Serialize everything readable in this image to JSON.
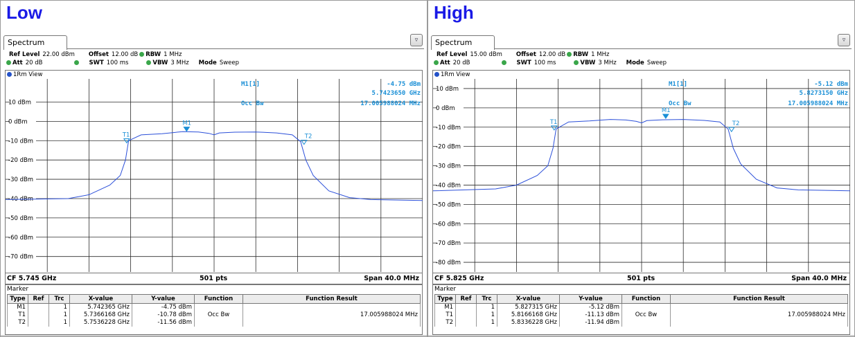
{
  "panels": [
    {
      "label": "Low",
      "tab": "Spectrum",
      "settings": {
        "ref_level_label": "Ref Level",
        "ref_level": "22.00 dBm",
        "offset_label": "Offset",
        "offset": "12.00 dB",
        "rbw_label": "RBW",
        "rbw": "1 MHz",
        "att_label": "Att",
        "att": "20 dB",
        "swt_label": "SWT",
        "swt": "100 ms",
        "vbw_label": "VBW",
        "vbw": "3 MHz",
        "mode_label": "Mode",
        "mode": "Sweep"
      },
      "view": "1Rm View",
      "marker_readout": {
        "name": "M1[1]",
        "value": "-4.75 dBm",
        "freq": "5.7423650 GHz",
        "func": "Occ Bw",
        "func_value": "17.005988024 MHz"
      },
      "bottom": {
        "cf": "CF 5.745 GHz",
        "pts": "501 pts",
        "span": "Span 40.0 MHz"
      },
      "marker_table_title": "Marker",
      "columns": [
        "Type",
        "Ref",
        "Trc",
        "X-value",
        "Y-value",
        "Function",
        "Function Result"
      ],
      "rows": [
        [
          "M1",
          "",
          "1",
          "5.742365 GHz",
          "-4.75 dBm",
          "",
          ""
        ],
        [
          "T1",
          "",
          "1",
          "5.7366168 GHz",
          "-10.78 dBm",
          "Occ Bw",
          "17.005988024 MHz"
        ],
        [
          "T2",
          "",
          "1",
          "5.7536228 GHz",
          "-11.56 dBm",
          "",
          ""
        ]
      ]
    },
    {
      "label": "High",
      "tab": "Spectrum",
      "settings": {
        "ref_level_label": "Ref Level",
        "ref_level": "15.00 dBm",
        "offset_label": "Offset",
        "offset": "12.00 dB",
        "rbw_label": "RBW",
        "rbw": "1 MHz",
        "att_label": "Att",
        "att": "20 dB",
        "swt_label": "SWT",
        "swt": "100 ms",
        "vbw_label": "VBW",
        "vbw": "3 MHz",
        "mode_label": "Mode",
        "mode": "Sweep"
      },
      "view": "1Rm View",
      "marker_readout": {
        "name": "M1[1]",
        "value": "-5.12 dBm",
        "freq": "5.8273150 GHz",
        "func": "Occ Bw",
        "func_value": "17.005988024 MHz"
      },
      "bottom": {
        "cf": "CF 5.825 GHz",
        "pts": "501 pts",
        "span": "Span 40.0 MHz"
      },
      "marker_table_title": "Marker",
      "columns": [
        "Type",
        "Ref",
        "Trc",
        "X-value",
        "Y-value",
        "Function",
        "Function Result"
      ],
      "rows": [
        [
          "M1",
          "",
          "1",
          "5.827315 GHz",
          "-5.12 dBm",
          "",
          ""
        ],
        [
          "T1",
          "",
          "1",
          "5.8166168 GHz",
          "-11.13 dBm",
          "Occ Bw",
          "17.005988024 MHz"
        ],
        [
          "T2",
          "",
          "1",
          "5.8336228 GHz",
          "-11.94 dBm",
          "",
          ""
        ]
      ]
    }
  ],
  "chart_data": [
    {
      "type": "line",
      "ylabel_ticks": [
        "10 dBm",
        "0 dBm",
        "-10 dBm",
        "-20 dBm",
        "-30 dBm",
        "-40 dBm",
        "-50 dBm",
        "-60 dBm",
        "-70 dBm"
      ],
      "ylim": [
        -78,
        22
      ],
      "xlim_mhz": [
        -20,
        20
      ],
      "series": [
        {
          "values_x_mhz": [
            -20,
            -14,
            -12,
            -10,
            -9,
            -8.5,
            -8.2,
            -7,
            -5,
            -3,
            -1.5,
            -0.5,
            0,
            0.5,
            2,
            4,
            6,
            7.5,
            8.3,
            8.8,
            9.5,
            11,
            13,
            15,
            20
          ],
          "values_dbm": [
            -40.5,
            -40,
            -38,
            -33,
            -28,
            -20,
            -10,
            -7,
            -6.4,
            -5.3,
            -5.5,
            -6.2,
            -7,
            -6,
            -5.6,
            -5.5,
            -6,
            -7,
            -10.5,
            -20,
            -28,
            -36,
            -39.5,
            -40.5,
            -41
          ]
        }
      ],
      "markers": [
        {
          "name": "M1",
          "x_mhz": -2.635,
          "y_dbm": -4.75
        },
        {
          "name": "T1",
          "x_mhz": -8.383,
          "y_dbm": -10.78
        },
        {
          "name": "T2",
          "x_mhz": 8.623,
          "y_dbm": -11.56
        }
      ]
    },
    {
      "type": "line",
      "ylabel_ticks": [
        "10 dBm",
        "0 dBm",
        "-10 dBm",
        "-20 dBm",
        "-30 dBm",
        "-40 dBm",
        "-50 dBm",
        "-60 dBm",
        "-70 dBm",
        "-80 dBm"
      ],
      "ylim": [
        -85,
        15
      ],
      "xlim_mhz": [
        -20,
        20
      ],
      "series": [
        {
          "values_x_mhz": [
            -20,
            -14,
            -12,
            -10,
            -9,
            -8.5,
            -8.2,
            -7,
            -5,
            -3,
            -1.5,
            -0.5,
            0,
            0.5,
            2,
            4,
            6,
            7.5,
            8.3,
            8.8,
            9.5,
            11,
            13,
            15,
            20
          ],
          "values_dbm": [
            -43,
            -42,
            -40,
            -35,
            -30,
            -21,
            -11,
            -7.3,
            -6.8,
            -6,
            -6.3,
            -7,
            -7.8,
            -6.6,
            -6.2,
            -6,
            -6.5,
            -7.3,
            -11,
            -21,
            -29,
            -37,
            -41.5,
            -42.5,
            -43
          ]
        }
      ],
      "markers": [
        {
          "name": "M1",
          "x_mhz": 2.315,
          "y_dbm": -5.12
        },
        {
          "name": "T1",
          "x_mhz": -8.383,
          "y_dbm": -11.13
        },
        {
          "name": "T2",
          "x_mhz": 8.623,
          "y_dbm": -11.94
        }
      ]
    }
  ],
  "colors": {
    "label": "#1a1ae6",
    "trace": "#2b4fd9",
    "marker": "#1a8fd6",
    "readout": "#1a8fd6"
  }
}
